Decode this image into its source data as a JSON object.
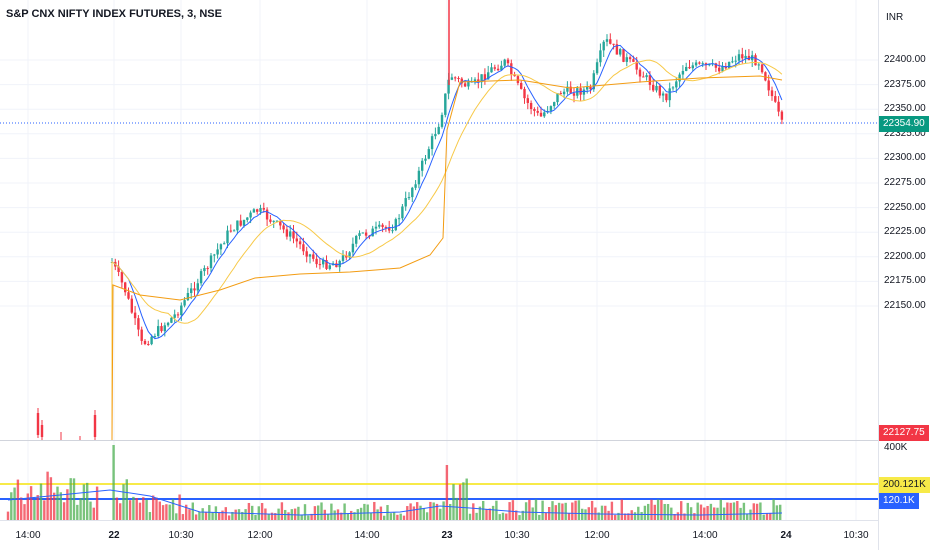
{
  "header": {
    "symbol": "S&P CNX NIFTY INDEX FUTURES, 3, NSE",
    "currency": "INR"
  },
  "price_axis": {
    "ticks": [
      "22400.00",
      "22375.00",
      "22350.00",
      "22325.00",
      "22300.00",
      "22275.00",
      "22250.00",
      "22225.00",
      "22200.00",
      "22175.00",
      "22150.00"
    ],
    "last_price": "22354.90",
    "low_marker": "22127.75"
  },
  "volume_axis": {
    "max_label": "400K",
    "level1": "200.121K",
    "level2": "120.1K"
  },
  "time_axis": {
    "ticks": [
      {
        "label": "14:00",
        "bold": false
      },
      {
        "label": "22",
        "bold": true
      },
      {
        "label": "10:30",
        "bold": false
      },
      {
        "label": "12:00",
        "bold": false
      },
      {
        "label": "14:00",
        "bold": false
      },
      {
        "label": "23",
        "bold": true
      },
      {
        "label": "10:30",
        "bold": false
      },
      {
        "label": "12:00",
        "bold": false
      },
      {
        "label": "14:00",
        "bold": false
      },
      {
        "label": "24",
        "bold": true
      },
      {
        "label": "10:30",
        "bold": false
      }
    ]
  },
  "colors": {
    "up": "#26a69a",
    "down": "#f23645",
    "vol_up": "#4caf50",
    "vol_down": "#f23645",
    "ma_fast": "#2962ff",
    "ma_slow": "#f7c948",
    "vwap": "#f39c12",
    "last_line": "#2962ff"
  }
}
